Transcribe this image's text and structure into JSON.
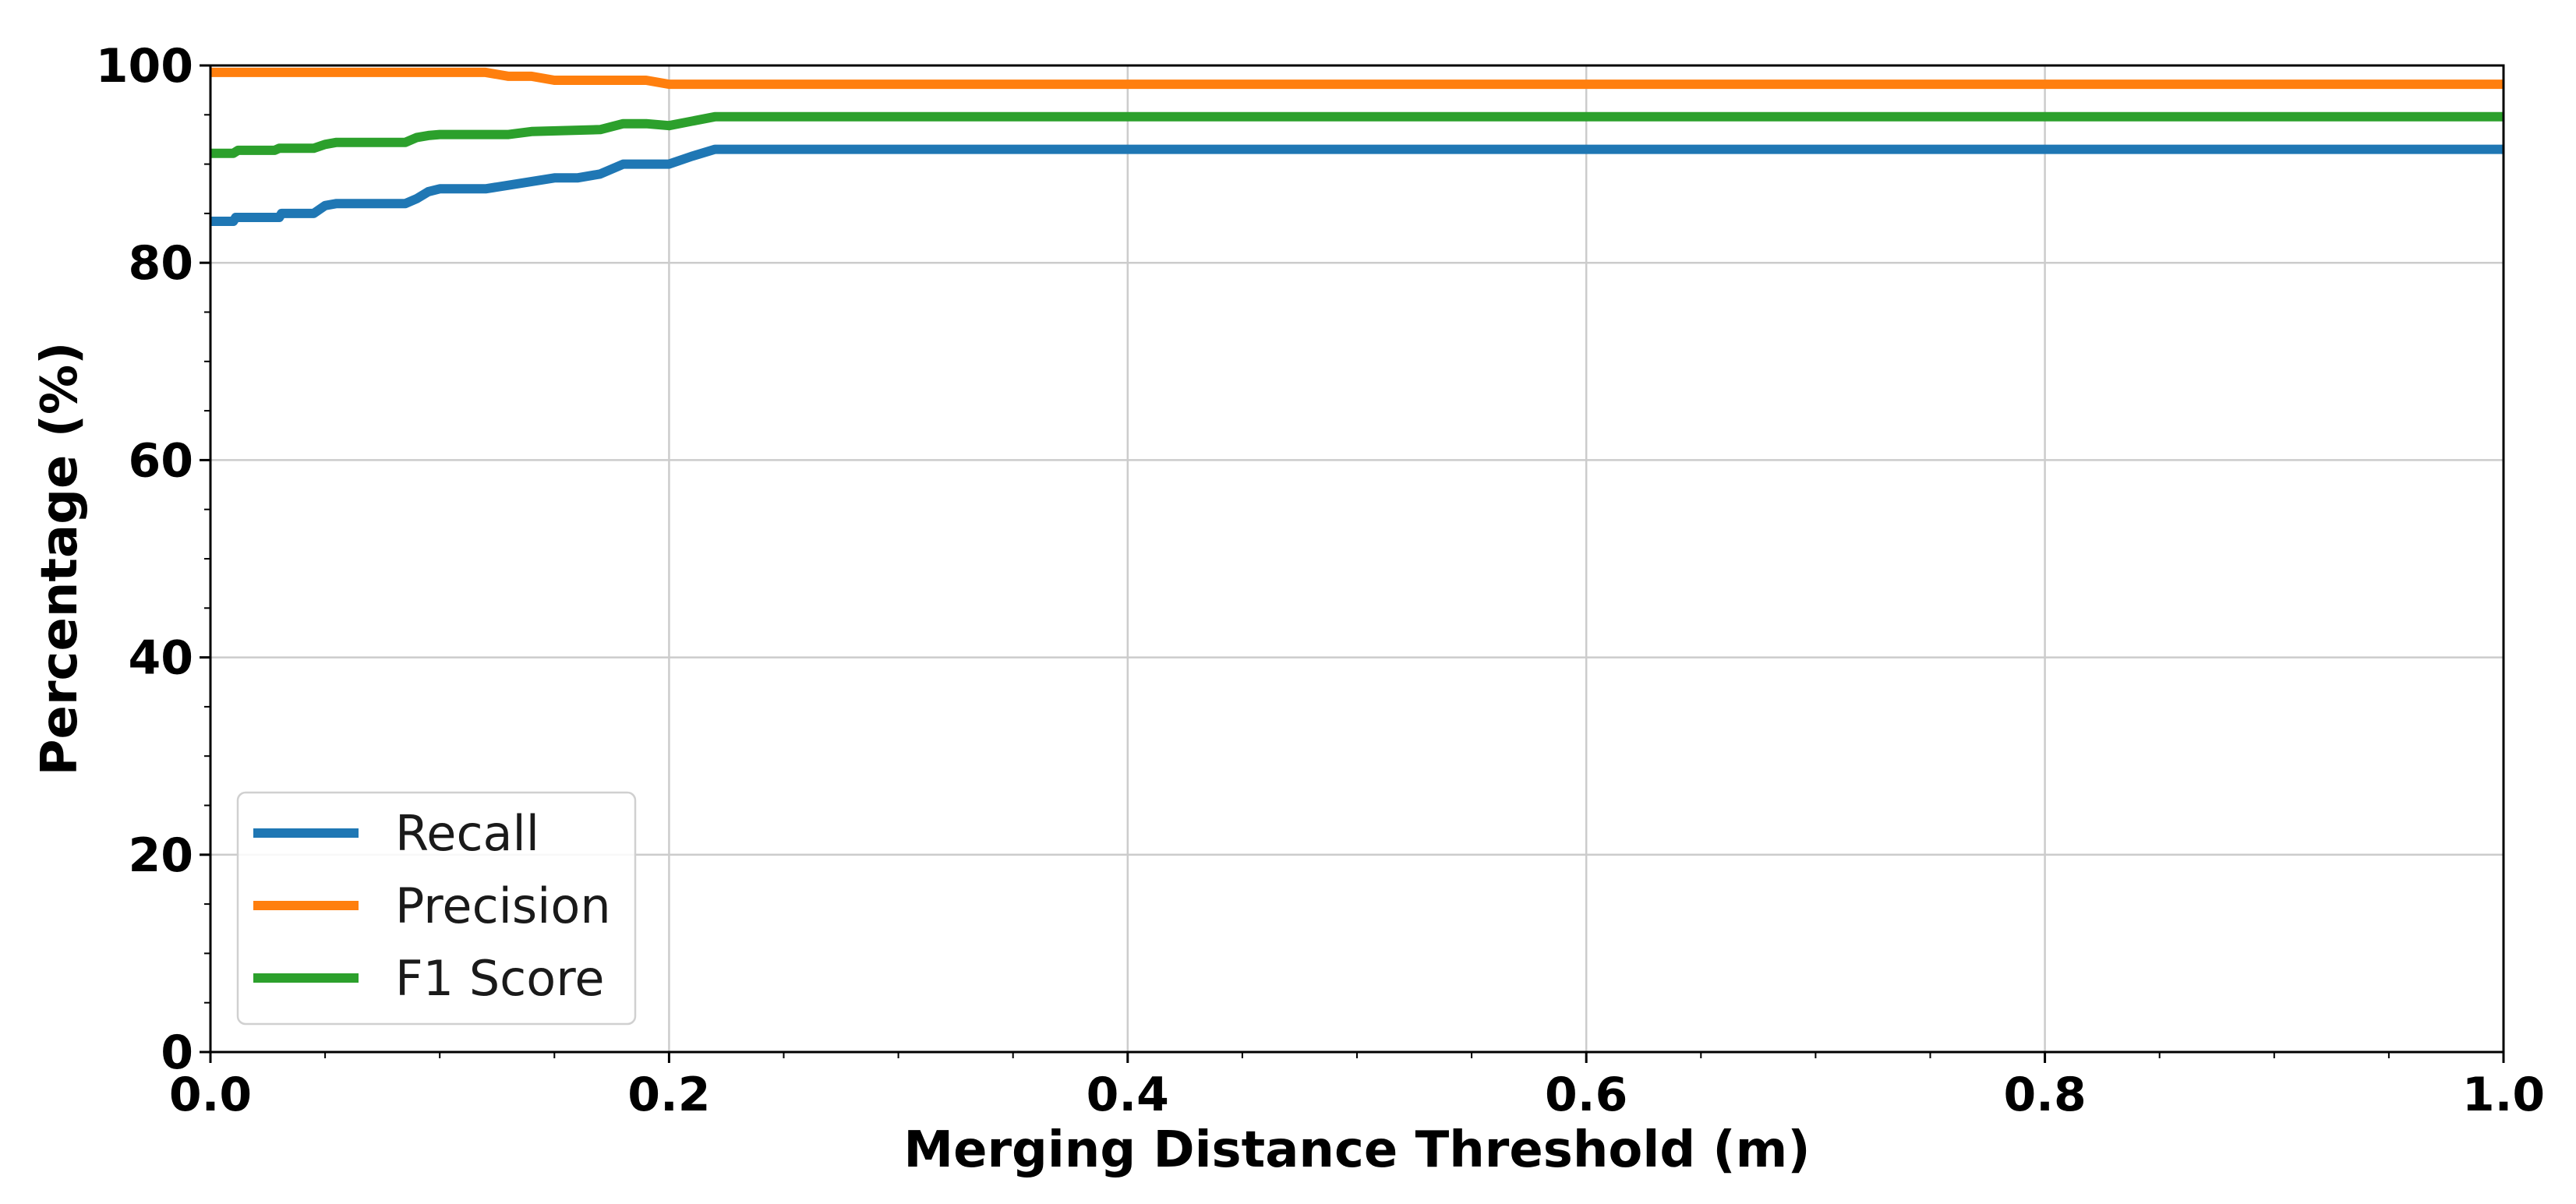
{
  "chart_data": {
    "type": "line",
    "title": "",
    "xlabel": "Merging Distance Threshold (m)",
    "ylabel": "Percentage (%)",
    "xlim": [
      0.0,
      1.0
    ],
    "ylim": [
      0,
      100
    ],
    "xticks": [
      "0.0",
      "0.2",
      "0.4",
      "0.6",
      "0.8",
      "1.0"
    ],
    "yticks": [
      "0",
      "20",
      "40",
      "60",
      "80",
      "100"
    ],
    "grid": true,
    "legend_position": "lower-left",
    "series": [
      {
        "name": "Recall",
        "color": "#1f77b4",
        "x": [
          0.0,
          0.01,
          0.011,
          0.03,
          0.031,
          0.045,
          0.05,
          0.055,
          0.085,
          0.09,
          0.095,
          0.1,
          0.12,
          0.15,
          0.16,
          0.17,
          0.18,
          0.2,
          0.21,
          0.22,
          1.0
        ],
        "values": [
          84.2,
          84.2,
          84.6,
          84.6,
          85.0,
          85.0,
          85.8,
          86.0,
          86.0,
          86.5,
          87.2,
          87.5,
          87.5,
          88.6,
          88.6,
          89.0,
          90.0,
          90.0,
          90.8,
          91.5,
          91.5
        ]
      },
      {
        "name": "Precision",
        "color": "#ff7f0e",
        "x": [
          0.0,
          0.12,
          0.13,
          0.14,
          0.15,
          0.17,
          0.19,
          0.2,
          1.0
        ],
        "values": [
          99.3,
          99.3,
          98.9,
          98.9,
          98.5,
          98.5,
          98.5,
          98.1,
          98.1
        ]
      },
      {
        "name": "F1 Score",
        "color": "#2ca02c",
        "x": [
          0.0,
          0.01,
          0.012,
          0.028,
          0.03,
          0.045,
          0.05,
          0.055,
          0.085,
          0.09,
          0.095,
          0.1,
          0.13,
          0.14,
          0.17,
          0.18,
          0.19,
          0.2,
          0.22,
          1.0
        ],
        "values": [
          91.1,
          91.1,
          91.4,
          91.4,
          91.6,
          91.6,
          92.0,
          92.2,
          92.2,
          92.7,
          92.9,
          93.0,
          93.0,
          93.3,
          93.5,
          94.1,
          94.1,
          93.9,
          94.8,
          94.8
        ]
      }
    ]
  }
}
